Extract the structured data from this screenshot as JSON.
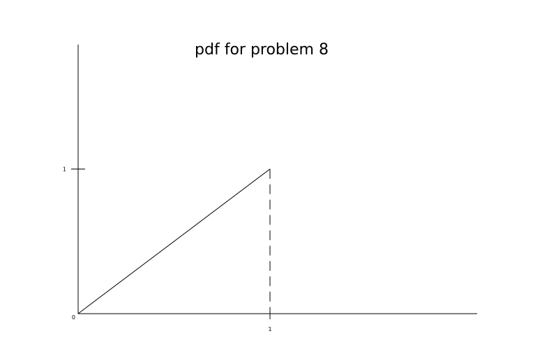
{
  "chart_data": {
    "type": "line",
    "title": "pdf for problem 8",
    "xlabel": "",
    "ylabel": "",
    "xlim": [
      0,
      2.08
    ],
    "ylim": [
      0,
      1.86
    ],
    "grid": false,
    "origin_label": "0",
    "x_ticks": [
      {
        "value": 1,
        "label": "1"
      }
    ],
    "y_ticks": [
      {
        "value": 1,
        "label": "1"
      }
    ],
    "series": [
      {
        "values": [
          {
            "x": 0,
            "y": 0
          },
          {
            "x": 1,
            "y": 1
          }
        ],
        "style": "solid"
      }
    ],
    "reference_lines": [
      {
        "type": "vertical",
        "x": 1,
        "y_from": 0,
        "y_to": 1,
        "style": "dashed"
      }
    ],
    "colors": {
      "line": "#000000",
      "axis": "#000000",
      "background": "#ffffff"
    }
  }
}
